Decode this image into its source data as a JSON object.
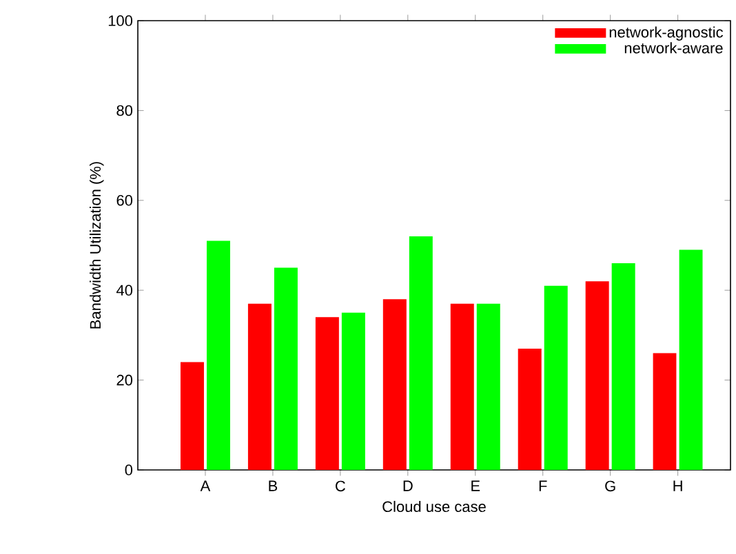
{
  "chart_data": {
    "type": "bar",
    "xlabel": "Cloud use case",
    "ylabel": "Bandwidth Utilization (%)",
    "categories": [
      "A",
      "B",
      "C",
      "D",
      "E",
      "F",
      "G",
      "H"
    ],
    "series": [
      {
        "name": "network-agnostic",
        "color": "#ff0000",
        "values": [
          24,
          37,
          34,
          38,
          37,
          27,
          42,
          26
        ]
      },
      {
        "name": "network-aware",
        "color": "#00ff00",
        "values": [
          51,
          45,
          35,
          52,
          37,
          41,
          46,
          49
        ]
      }
    ],
    "ylim": [
      0,
      100
    ],
    "yticks": [
      0,
      20,
      40,
      60,
      80,
      100
    ],
    "legend": "top right"
  }
}
